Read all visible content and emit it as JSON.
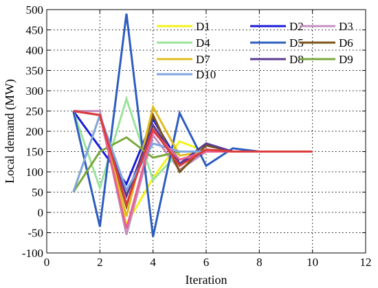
{
  "chart_data": {
    "type": "line",
    "title": "",
    "xlabel": "Iteration",
    "ylabel": "Local demand (MW)",
    "xlim": [
      0,
      12
    ],
    "ylim": [
      -100,
      500
    ],
    "xticks": [
      0,
      2,
      4,
      6,
      8,
      10,
      12
    ],
    "yticks": [
      -100,
      -50,
      0,
      50,
      100,
      150,
      200,
      250,
      300,
      350,
      400,
      450,
      500
    ],
    "grid": true,
    "legend_position": "top-right",
    "x": [
      1,
      2,
      3,
      4,
      5,
      6,
      7,
      8,
      9,
      10
    ],
    "series": [
      {
        "name": "D1",
        "color": "#f2f21a",
        "values": [
          50,
          240,
          -30,
          85,
          175,
          150,
          150,
          150,
          150,
          150
        ]
      },
      {
        "name": "D2",
        "color": "#1a1ad9",
        "values": [
          250,
          160,
          70,
          230,
          120,
          150,
          150,
          150,
          150,
          150
        ]
      },
      {
        "name": "D3",
        "color": "#c38fc0",
        "values": [
          250,
          250,
          -55,
          190,
          105,
          150,
          150,
          150,
          150,
          150
        ]
      },
      {
        "name": "D4",
        "color": "#9be39b",
        "values": [
          250,
          60,
          280,
          80,
          150,
          150,
          150,
          150,
          150,
          150
        ]
      },
      {
        "name": "D5",
        "color": "#2d5cbf",
        "values": [
          250,
          -35,
          490,
          -60,
          245,
          115,
          158,
          150,
          150,
          150
        ]
      },
      {
        "name": "D6",
        "color": "#7a5418",
        "values": [
          250,
          240,
          15,
          240,
          100,
          165,
          150,
          150,
          150,
          150
        ]
      },
      {
        "name": "D7",
        "color": "#e0bb22",
        "values": [
          250,
          240,
          -10,
          260,
          140,
          150,
          150,
          150,
          150,
          150
        ]
      },
      {
        "name": "D8",
        "color": "#5a3a8f",
        "values": [
          250,
          240,
          40,
          215,
          120,
          170,
          150,
          150,
          150,
          150
        ]
      },
      {
        "name": "D9",
        "color": "#7aa83c",
        "values": [
          50,
          150,
          185,
          135,
          150,
          150,
          150,
          150,
          150,
          150
        ]
      },
      {
        "name": "D10",
        "color": "#7fa6e0",
        "values": [
          50,
          240,
          55,
          170,
          150,
          150,
          150,
          150,
          150,
          150
        ]
      },
      {
        "name": "",
        "color": "#e8608f",
        "values": [
          250,
          240,
          -40,
          200,
          130,
          150,
          150,
          150,
          150,
          150
        ]
      },
      {
        "name": "",
        "color": "#dc3c3c",
        "values": [
          250,
          240,
          20,
          205,
          115,
          155,
          150,
          150,
          150,
          150
        ]
      }
    ]
  }
}
